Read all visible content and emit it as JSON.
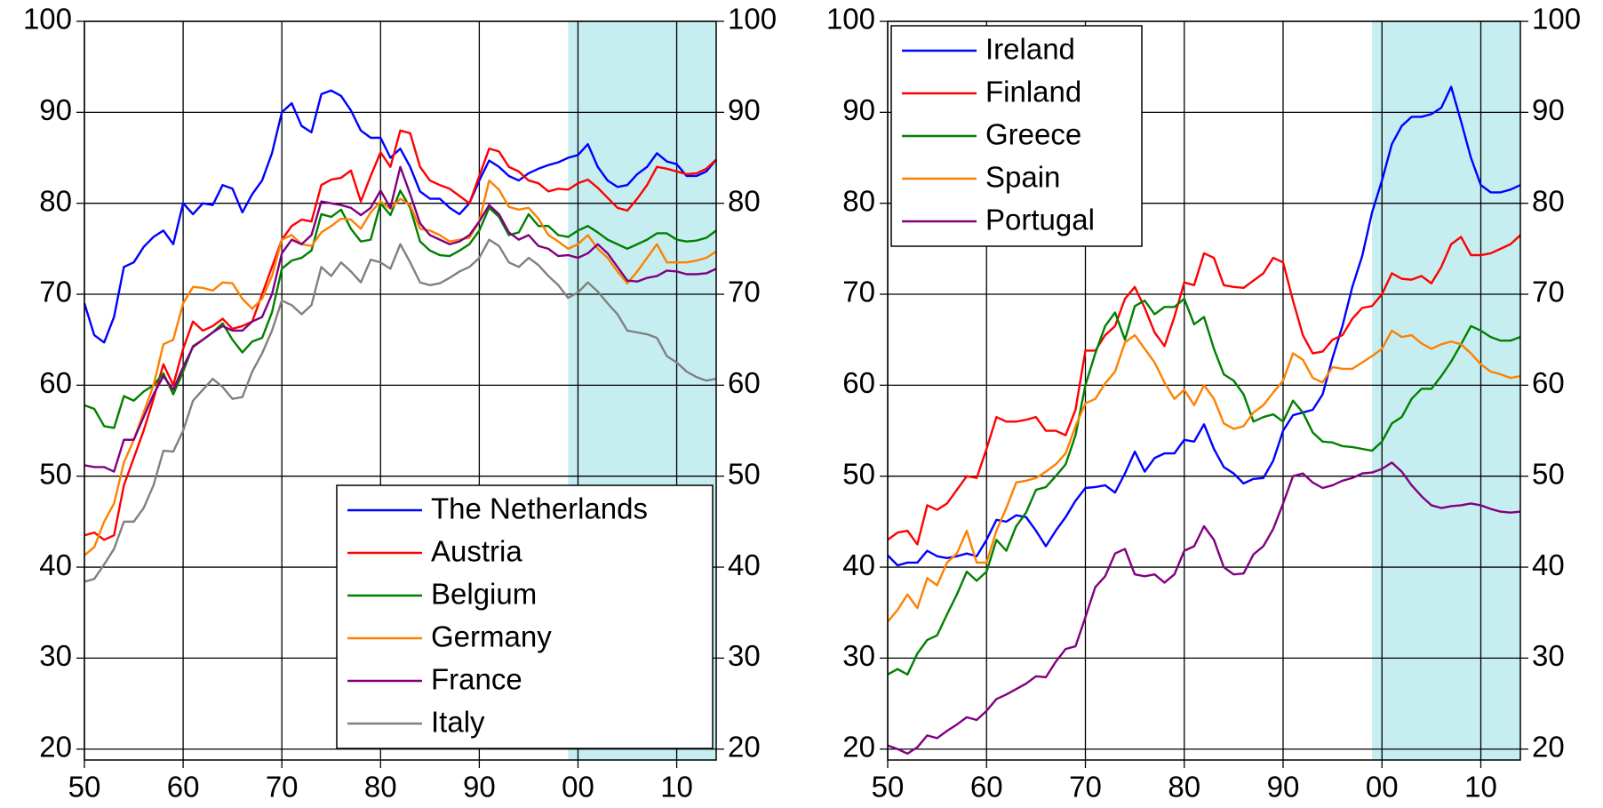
{
  "chart_data": [
    {
      "type": "line",
      "x": [
        1950,
        1951,
        1952,
        1953,
        1954,
        1955,
        1956,
        1957,
        1958,
        1959,
        1960,
        1961,
        1962,
        1963,
        1964,
        1965,
        1966,
        1967,
        1968,
        1969,
        1970,
        1971,
        1972,
        1973,
        1974,
        1975,
        1976,
        1977,
        1978,
        1979,
        1980,
        1981,
        1982,
        1983,
        1984,
        1985,
        1986,
        1987,
        1988,
        1989,
        1990,
        1991,
        1992,
        1993,
        1994,
        1995,
        1996,
        1997,
        1998,
        1999,
        2000,
        2001,
        2002,
        2003,
        2004,
        2005,
        2006,
        2007,
        2008,
        2009,
        2010,
        2011,
        2012,
        2013,
        2014
      ],
      "series": [
        {
          "name": "The Netherlands",
          "color": "#0000ff",
          "values": [
            69,
            65.5,
            64.7,
            67.5,
            73,
            73.5,
            75.2,
            76.3,
            77,
            75.5,
            80,
            78.8,
            80,
            79.8,
            82,
            81.6,
            79,
            81,
            82.5,
            85.5,
            90,
            91,
            88.5,
            87.8,
            92,
            92.4,
            91.8,
            90.2,
            88,
            87.2,
            87.2,
            85,
            86,
            84,
            81.3,
            80.5,
            80.5,
            79.5,
            78.8,
            80,
            82.5,
            84.7,
            84,
            83,
            82.5,
            83.3,
            83.8,
            84.2,
            84.5,
            85,
            85.3,
            86.5,
            84,
            82.5,
            81.8,
            82,
            83.2,
            84,
            85.5,
            84.6,
            84.3,
            83,
            83,
            83.5,
            84.8
          ]
        },
        {
          "name": "Austria",
          "color": "#ff0000",
          "values": [
            43.5,
            43.8,
            43,
            43.5,
            49,
            52,
            55,
            58.5,
            62.3,
            60,
            64,
            67,
            66,
            66.5,
            67.3,
            66.2,
            66.5,
            67,
            70,
            73,
            76,
            77.5,
            78.2,
            78,
            82,
            82.6,
            82.8,
            83.6,
            80.2,
            83,
            85.6,
            84,
            88,
            87.7,
            84,
            82.5,
            82,
            81.6,
            80.8,
            80,
            83,
            86,
            85.7,
            84,
            83.5,
            82.5,
            82.2,
            81.3,
            81.6,
            81.5,
            82.2,
            82.6,
            81.7,
            80.6,
            79.5,
            79.2,
            80.5,
            82,
            84,
            83.8,
            83.5,
            83.2,
            83.3,
            83.8,
            84.8
          ]
        },
        {
          "name": "Belgium",
          "color": "#008000",
          "values": [
            57.8,
            57.4,
            55.5,
            55.3,
            58.8,
            58.3,
            59.3,
            60,
            61.3,
            59,
            61.5,
            64.3,
            65,
            65.8,
            66.8,
            65,
            63.6,
            64.8,
            65.2,
            68,
            72.8,
            73.7,
            74,
            74.8,
            78.8,
            78.5,
            79.3,
            77.2,
            75.8,
            76,
            80,
            78.7,
            81.4,
            79.5,
            75.8,
            74.8,
            74.3,
            74.2,
            74.8,
            75.5,
            77,
            79.5,
            78.5,
            76.5,
            76.8,
            78.8,
            77.5,
            77.5,
            76.5,
            76.3,
            77,
            77.5,
            76.8,
            76,
            75.5,
            75,
            75.5,
            76,
            76.7,
            76.7,
            76,
            75.8,
            75.9,
            76.2,
            77
          ]
        },
        {
          "name": "Germany",
          "color": "#ff8000",
          "values": [
            41.3,
            42.2,
            45,
            47,
            51.5,
            54,
            57,
            60,
            64.5,
            65,
            69,
            70.8,
            70.7,
            70.4,
            71.3,
            71.2,
            69.5,
            68.4,
            69.5,
            72,
            76,
            76.5,
            75.5,
            75.3,
            76.8,
            77.5,
            78.3,
            78.2,
            77.2,
            79,
            80.2,
            79.4,
            80.5,
            79.8,
            77.2,
            77,
            76.5,
            75.8,
            76,
            76.2,
            78,
            82.5,
            81.5,
            79.6,
            79.3,
            79.5,
            78.3,
            76.5,
            75.8,
            75,
            75.5,
            76.5,
            75,
            74,
            72.5,
            71.2,
            72.5,
            74,
            75.5,
            73.5,
            73.5,
            73.5,
            73.7,
            74,
            74.7
          ]
        },
        {
          "name": "France",
          "color": "#800080",
          "values": [
            51.2,
            51,
            51,
            50.5,
            54,
            54,
            56.5,
            59,
            61,
            59.5,
            62,
            64.2,
            65,
            65.8,
            66.5,
            66,
            66,
            67,
            67.5,
            70,
            74.5,
            76,
            75.5,
            76.5,
            80.2,
            80,
            79.8,
            79.5,
            78.7,
            79.5,
            81.4,
            79.5,
            84,
            81,
            77.8,
            76.5,
            76,
            75.5,
            75.8,
            76.5,
            78,
            79.8,
            78.8,
            76.8,
            76,
            76.5,
            75.3,
            75,
            74.2,
            74.3,
            74,
            74.5,
            75.5,
            74.5,
            73,
            71.5,
            71.4,
            71.8,
            72,
            72.6,
            72.5,
            72.2,
            72.2,
            72.3,
            72.8
          ]
        },
        {
          "name": "Italy",
          "color": "#808080",
          "values": [
            38.4,
            38.7,
            40.3,
            42,
            45,
            45,
            46.5,
            49,
            52.8,
            52.7,
            55,
            58.3,
            59.5,
            60.7,
            59.8,
            58.5,
            58.7,
            61.5,
            63.5,
            66,
            69.3,
            68.8,
            67.8,
            68.8,
            73,
            72,
            73.5,
            72.5,
            71.3,
            73.8,
            73.5,
            72.8,
            75.5,
            73.5,
            71.3,
            71,
            71.2,
            71.8,
            72.5,
            73,
            74,
            76,
            75.3,
            73.5,
            73,
            74,
            73.2,
            72,
            71,
            69.6,
            70.2,
            71.3,
            70.3,
            69,
            67.8,
            66,
            65.8,
            65.6,
            65.2,
            63.2,
            62.5,
            61.5,
            60.9,
            60.5,
            60.7
          ]
        }
      ],
      "xlim": [
        1950,
        2014
      ],
      "xticks": [
        {
          "value": 1950,
          "label": "50"
        },
        {
          "value": 1960,
          "label": "60"
        },
        {
          "value": 1970,
          "label": "70"
        },
        {
          "value": 1980,
          "label": "80"
        },
        {
          "value": 1990,
          "label": "90"
        },
        {
          "value": 2000,
          "label": "00"
        },
        {
          "value": 2010,
          "label": "10"
        }
      ],
      "ylim": [
        18.8,
        100
      ],
      "yticks": [
        20,
        30,
        40,
        50,
        60,
        70,
        80,
        90,
        100
      ],
      "y2lim": [
        18.8,
        100
      ],
      "y2ticks": [
        20,
        30,
        40,
        50,
        60,
        70,
        80,
        90,
        100
      ],
      "shaded_range": [
        1999,
        2014
      ],
      "shade_color": "#c6eef0",
      "grid": true,
      "legend": "lower right"
    },
    {
      "type": "line",
      "x": [
        1950,
        1951,
        1952,
        1953,
        1954,
        1955,
        1956,
        1957,
        1958,
        1959,
        1960,
        1961,
        1962,
        1963,
        1964,
        1965,
        1966,
        1967,
        1968,
        1969,
        1970,
        1971,
        1972,
        1973,
        1974,
        1975,
        1976,
        1977,
        1978,
        1979,
        1980,
        1981,
        1982,
        1983,
        1984,
        1985,
        1986,
        1987,
        1988,
        1989,
        1990,
        1991,
        1992,
        1993,
        1994,
        1995,
        1996,
        1997,
        1998,
        1999,
        2000,
        2001,
        2002,
        2003,
        2004,
        2005,
        2006,
        2007,
        2008,
        2009,
        2010,
        2011,
        2012,
        2013,
        2014
      ],
      "series": [
        {
          "name": "Ireland",
          "color": "#0000ff",
          "values": [
            41.3,
            40.2,
            40.5,
            40.5,
            41.8,
            41.2,
            41,
            41.2,
            41.5,
            41.2,
            43,
            45.2,
            45,
            45.7,
            45.5,
            44,
            42.3,
            44,
            45.5,
            47.3,
            48.7,
            48.8,
            49,
            48.2,
            50.3,
            52.7,
            50.5,
            52,
            52.5,
            52.5,
            54,
            53.8,
            55.7,
            53,
            51,
            50.3,
            49.2,
            49.7,
            49.8,
            51.7,
            55,
            56.7,
            57,
            57.3,
            59,
            63,
            66.5,
            70.8,
            74.2,
            79,
            82.5,
            86.5,
            88.5,
            89.5,
            89.5,
            89.8,
            90.5,
            92.8,
            89,
            85,
            82,
            81.2,
            81.2,
            81.5,
            82
          ]
        },
        {
          "name": "Finland",
          "color": "#ff0000",
          "values": [
            43,
            43.8,
            44,
            42.5,
            46.8,
            46.3,
            47,
            48.5,
            50,
            49.8,
            53,
            56.5,
            56,
            56,
            56.2,
            56.5,
            55,
            55,
            54.5,
            57.3,
            63.8,
            63.8,
            65.5,
            66.5,
            69.5,
            70.8,
            68.5,
            65.8,
            64.3,
            67.5,
            71.3,
            71,
            74.5,
            74,
            71,
            70.8,
            70.7,
            71.5,
            72.3,
            74,
            73.5,
            69.3,
            65.5,
            63.5,
            63.7,
            65,
            65.5,
            67.3,
            68.5,
            68.7,
            70,
            72.3,
            71.7,
            71.6,
            72,
            71.2,
            73,
            75.5,
            76.3,
            74.3,
            74.3,
            74.5,
            75,
            75.5,
            76.5
          ]
        },
        {
          "name": "Greece",
          "color": "#008000",
          "values": [
            28.2,
            28.8,
            28.2,
            30.5,
            32,
            32.5,
            34.8,
            37,
            39.5,
            38.5,
            39.5,
            43,
            41.8,
            44.5,
            46,
            48.5,
            48.8,
            50,
            51.3,
            54.5,
            60,
            63.5,
            66.5,
            68,
            65,
            68.7,
            69.3,
            67.8,
            68.6,
            68.6,
            69.5,
            66.7,
            67.5,
            64,
            61.2,
            60.5,
            59,
            56,
            56.5,
            56.8,
            56,
            58.3,
            57,
            54.8,
            53.8,
            53.7,
            53.3,
            53.2,
            53,
            52.8,
            53.8,
            55.8,
            56.5,
            58.5,
            59.6,
            59.6,
            61,
            62.6,
            64.5,
            66.5,
            66,
            65.3,
            64.9,
            64.9,
            65.3
          ]
        },
        {
          "name": "Spain",
          "color": "#ff8000",
          "values": [
            34,
            35.3,
            37,
            35.5,
            38.8,
            38,
            40.5,
            41.5,
            44,
            40.5,
            40.5,
            44,
            46.5,
            49.3,
            49.5,
            49.8,
            50.5,
            51.3,
            52.5,
            55.5,
            58,
            58.5,
            60.2,
            61.5,
            64.7,
            65.5,
            64,
            62.5,
            60.3,
            58.5,
            59.5,
            57.8,
            60,
            58.5,
            55.8,
            55.2,
            55.5,
            57,
            57.8,
            59.2,
            60.5,
            63.5,
            62.8,
            60.8,
            60.3,
            62,
            61.8,
            61.8,
            62.5,
            63.2,
            64,
            66,
            65.3,
            65.5,
            64.6,
            64,
            64.5,
            64.8,
            64.5,
            63.5,
            62.3,
            61.5,
            61.2,
            60.8,
            61
          ]
        },
        {
          "name": "Portugal",
          "color": "#800080",
          "values": [
            20.4,
            20,
            19.5,
            20.2,
            21.5,
            21.2,
            22,
            22.7,
            23.5,
            23.2,
            24.2,
            25.5,
            26,
            26.6,
            27.2,
            28,
            27.9,
            29.6,
            31,
            31.3,
            34.5,
            37.8,
            39,
            41.5,
            42,
            39.2,
            39,
            39.2,
            38.3,
            39.2,
            41.8,
            42.3,
            44.5,
            43,
            40,
            39.2,
            39.3,
            41.4,
            42.3,
            44.2,
            47,
            50,
            50.3,
            49.3,
            48.7,
            49,
            49.5,
            49.8,
            50.3,
            50.4,
            50.8,
            51.5,
            50.5,
            49,
            47.8,
            46.8,
            46.5,
            46.7,
            46.8,
            47,
            46.8,
            46.4,
            46.1,
            46,
            46.1
          ]
        }
      ],
      "xlim": [
        1950,
        2014
      ],
      "xticks": [
        {
          "value": 1950,
          "label": "50"
        },
        {
          "value": 1960,
          "label": "60"
        },
        {
          "value": 1970,
          "label": "70"
        },
        {
          "value": 1980,
          "label": "80"
        },
        {
          "value": 1990,
          "label": "90"
        },
        {
          "value": 2000,
          "label": "00"
        },
        {
          "value": 2010,
          "label": "10"
        }
      ],
      "ylim": [
        18.8,
        100
      ],
      "yticks": [
        20,
        30,
        40,
        50,
        60,
        70,
        80,
        90,
        100
      ],
      "y2lim": [
        18.8,
        100
      ],
      "y2ticks": [
        20,
        30,
        40,
        50,
        60,
        70,
        80,
        90,
        100
      ],
      "shaded_range": [
        1999,
        2014
      ],
      "shade_color": "#c6eef0",
      "grid": true,
      "legend": "upper left"
    }
  ]
}
